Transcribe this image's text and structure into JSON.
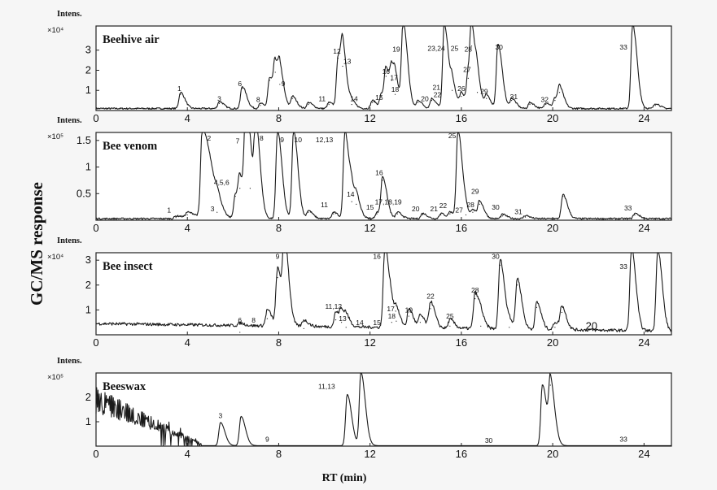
{
  "figure": {
    "y_axis_label": "GC/MS response",
    "x_axis_label": "RT (min)"
  },
  "chart_data": [
    {
      "type": "line",
      "title": "Beehive air",
      "intens_label": "Intens.",
      "scale_label": "×10⁴",
      "xlim": [
        0,
        25.2
      ],
      "ylim": [
        0,
        4.2
      ],
      "xticks": [
        0,
        4,
        8,
        12,
        16,
        20,
        24
      ],
      "yticks": [
        1,
        2,
        3
      ],
      "baseline": 0.1,
      "noise": 0.04,
      "peaks": [
        {
          "x": 3.7,
          "y": 0.8
        },
        {
          "x": 5.4,
          "y": 0.35
        },
        {
          "x": 6.4,
          "y": 1.1
        },
        {
          "x": 7.2,
          "y": 0.25
        },
        {
          "x": 7.6,
          "y": 1.5
        },
        {
          "x": 7.85,
          "y": 1.9
        },
        {
          "x": 8.05,
          "y": 1.3
        },
        {
          "x": 8.6,
          "y": 0.6
        },
        {
          "x": 9.3,
          "y": 0.3
        },
        {
          "x": 10.2,
          "y": 0.3
        },
        {
          "x": 10.6,
          "y": 2.6
        },
        {
          "x": 10.8,
          "y": 2.2
        },
        {
          "x": 11.2,
          "y": 0.3
        },
        {
          "x": 12.1,
          "y": 0.4
        },
        {
          "x": 12.5,
          "y": 0.7
        },
        {
          "x": 12.7,
          "y": 1.7
        },
        {
          "x": 12.95,
          "y": 1.5
        },
        {
          "x": 13.1,
          "y": 0.8
        },
        {
          "x": 13.45,
          "y": 4.2
        },
        {
          "x": 14.1,
          "y": 0.4
        },
        {
          "x": 14.7,
          "y": 0.5
        },
        {
          "x": 15.25,
          "y": 4.2
        },
        {
          "x": 15.6,
          "y": 1.0
        },
        {
          "x": 16.0,
          "y": 0.7
        },
        {
          "x": 16.3,
          "y": 1.6
        },
        {
          "x": 16.45,
          "y": 3.2
        },
        {
          "x": 16.7,
          "y": 0.9
        },
        {
          "x": 17.1,
          "y": 0.6
        },
        {
          "x": 17.6,
          "y": 3.2
        },
        {
          "x": 18.2,
          "y": 0.5
        },
        {
          "x": 19.0,
          "y": 0.3
        },
        {
          "x": 19.7,
          "y": 0.3
        },
        {
          "x": 20.1,
          "y": 0.5
        },
        {
          "x": 20.3,
          "y": 0.9
        },
        {
          "x": 23.5,
          "y": 4.2
        },
        {
          "x": 24.5,
          "y": 0.25
        }
      ],
      "labels": [
        {
          "text": "1",
          "x": 3.65,
          "y": 0.85
        },
        {
          "text": "3",
          "x": 5.4,
          "y": 0.35
        },
        {
          "text": "6",
          "x": 6.3,
          "y": 1.1
        },
        {
          "text": "8",
          "x": 7.1,
          "y": 0.3
        },
        {
          "text": "9",
          "x": 8.2,
          "y": 1.1
        },
        {
          "text": "11",
          "x": 9.9,
          "y": 0.35
        },
        {
          "text": "12",
          "x": 10.55,
          "y": 2.7
        },
        {
          "text": "13",
          "x": 11.0,
          "y": 2.2
        },
        {
          "text": "14",
          "x": 11.3,
          "y": 0.35
        },
        {
          "text": "15",
          "x": 12.4,
          "y": 0.4
        },
        {
          "text": "16",
          "x": 12.7,
          "y": 1.7
        },
        {
          "text": "17",
          "x": 13.05,
          "y": 1.4
        },
        {
          "text": "18",
          "x": 13.1,
          "y": 0.8
        },
        {
          "text": "19",
          "x": 13.15,
          "y": 2.8
        },
        {
          "text": "20",
          "x": 14.4,
          "y": 0.35
        },
        {
          "text": "21,",
          "x": 14.95,
          "y": 0.9
        },
        {
          "text": "22",
          "x": 14.95,
          "y": 0.55
        },
        {
          "text": "23,24",
          "x": 14.9,
          "y": 2.85
        },
        {
          "text": "25",
          "x": 15.7,
          "y": 2.85
        },
        {
          "text": "26",
          "x": 16.0,
          "y": 0.85
        },
        {
          "text": "27",
          "x": 16.25,
          "y": 1.8
        },
        {
          "text": "28",
          "x": 16.3,
          "y": 2.8
        },
        {
          "text": "29",
          "x": 17.0,
          "y": 0.7
        },
        {
          "text": "30",
          "x": 17.65,
          "y": 2.9
        },
        {
          "text": "31",
          "x": 18.3,
          "y": 0.45
        },
        {
          "text": "32",
          "x": 19.65,
          "y": 0.3
        },
        {
          "text": "33",
          "x": 23.1,
          "y": 2.9
        }
      ]
    },
    {
      "type": "line",
      "title": "Bee venom",
      "intens_label": "Intens.",
      "scale_label": "×10⁵",
      "xlim": [
        0,
        25.2
      ],
      "ylim": [
        0,
        1.65
      ],
      "xticks": [
        0,
        4,
        8,
        12,
        16,
        20,
        24
      ],
      "yticks": [
        0.5,
        1,
        1.5
      ],
      "baseline": 0.03,
      "noise": 0.015,
      "peaks": [
        {
          "x": 3.5,
          "y": 0.05
        },
        {
          "x": 4.0,
          "y": 0.1
        },
        {
          "x": 4.65,
          "y": 1.65
        },
        {
          "x": 5.3,
          "y": 0.15
        },
        {
          "x": 6.1,
          "y": 0.45
        },
        {
          "x": 6.3,
          "y": 0.6
        },
        {
          "x": 6.55,
          "y": 1.65
        },
        {
          "x": 6.75,
          "y": 0.6
        },
        {
          "x": 7.0,
          "y": 1.65
        },
        {
          "x": 7.95,
          "y": 1.65
        },
        {
          "x": 8.65,
          "y": 1.65
        },
        {
          "x": 9.3,
          "y": 0.15
        },
        {
          "x": 10.4,
          "y": 0.12
        },
        {
          "x": 10.9,
          "y": 1.65
        },
        {
          "x": 11.2,
          "y": 0.35
        },
        {
          "x": 11.4,
          "y": 0.3
        },
        {
          "x": 12.3,
          "y": 0.12
        },
        {
          "x": 12.55,
          "y": 0.75
        },
        {
          "x": 13.2,
          "y": 0.12
        },
        {
          "x": 14.3,
          "y": 0.1
        },
        {
          "x": 15.1,
          "y": 0.1
        },
        {
          "x": 15.5,
          "y": 0.12
        },
        {
          "x": 15.85,
          "y": 1.65
        },
        {
          "x": 16.2,
          "y": 0.1
        },
        {
          "x": 16.5,
          "y": 0.15
        },
        {
          "x": 16.8,
          "y": 0.3
        },
        {
          "x": 17.8,
          "y": 0.08
        },
        {
          "x": 18.8,
          "y": 0.06
        },
        {
          "x": 20.45,
          "y": 0.45
        },
        {
          "x": 23.6,
          "y": 0.1
        }
      ],
      "labels": [
        {
          "text": "1",
          "x": 3.2,
          "y": 0.1
        },
        {
          "text": "2",
          "x": 4.95,
          "y": 1.45
        },
        {
          "text": "3",
          "x": 5.1,
          "y": 0.12
        },
        {
          "text": "4,5,6",
          "x": 5.5,
          "y": 0.62
        },
        {
          "text": "7",
          "x": 6.2,
          "y": 1.4
        },
        {
          "text": "8",
          "x": 7.25,
          "y": 1.45
        },
        {
          "text": "9",
          "x": 8.15,
          "y": 1.42
        },
        {
          "text": "10",
          "x": 8.85,
          "y": 1.42
        },
        {
          "text": "11",
          "x": 10.0,
          "y": 0.2
        },
        {
          "text": "12,13",
          "x": 10.0,
          "y": 1.42
        },
        {
          "text": "14",
          "x": 11.15,
          "y": 0.4
        },
        {
          "text": "15",
          "x": 12.0,
          "y": 0.15
        },
        {
          "text": "16",
          "x": 12.4,
          "y": 0.8
        },
        {
          "text": "17,18,19",
          "x": 12.8,
          "y": 0.25
        },
        {
          "text": "20",
          "x": 14.0,
          "y": 0.12
        },
        {
          "text": "21",
          "x": 14.8,
          "y": 0.12
        },
        {
          "text": "22",
          "x": 15.2,
          "y": 0.18
        },
        {
          "text": "25",
          "x": 15.6,
          "y": 1.5
        },
        {
          "text": "27",
          "x": 15.9,
          "y": 0.1
        },
        {
          "text": "28",
          "x": 16.4,
          "y": 0.2
        },
        {
          "text": "29",
          "x": 16.6,
          "y": 0.45
        },
        {
          "text": "30",
          "x": 17.5,
          "y": 0.15
        },
        {
          "text": "31",
          "x": 18.5,
          "y": 0.07
        },
        {
          "text": "33",
          "x": 23.3,
          "y": 0.14
        }
      ]
    },
    {
      "type": "line",
      "title": "Bee insect",
      "intens_label": "Intens.",
      "scale_label": "×10⁴",
      "xlim": [
        0,
        25.2
      ],
      "ylim": [
        0,
        3.3
      ],
      "xticks": [
        0,
        4,
        8,
        12,
        16,
        20,
        24
      ],
      "yticks": [
        1,
        2,
        3
      ],
      "baseline": 0.45,
      "baseline_end": 0.15,
      "noise": 0.06,
      "peaks": [
        {
          "x": 6.3,
          "y": 0.1
        },
        {
          "x": 7.5,
          "y": 0.65
        },
        {
          "x": 7.95,
          "y": 2.3
        },
        {
          "x": 8.25,
          "y": 3.3
        },
        {
          "x": 9.1,
          "y": 0.25
        },
        {
          "x": 10.5,
          "y": 0.6
        },
        {
          "x": 10.75,
          "y": 0.5
        },
        {
          "x": 10.95,
          "y": 0.3
        },
        {
          "x": 12.65,
          "y": 3.3
        },
        {
          "x": 12.95,
          "y": 0.5
        },
        {
          "x": 13.15,
          "y": 0.55
        },
        {
          "x": 13.7,
          "y": 0.75
        },
        {
          "x": 14.2,
          "y": 0.5
        },
        {
          "x": 14.65,
          "y": 1.05
        },
        {
          "x": 15.5,
          "y": 0.35
        },
        {
          "x": 16.6,
          "y": 1.45
        },
        {
          "x": 16.85,
          "y": 0.35
        },
        {
          "x": 17.7,
          "y": 2.8
        },
        {
          "x": 18.1,
          "y": 0.3
        },
        {
          "x": 18.45,
          "y": 2.0
        },
        {
          "x": 19.3,
          "y": 1.1
        },
        {
          "x": 20.1,
          "y": 0.3
        },
        {
          "x": 20.4,
          "y": 0.9
        },
        {
          "x": 23.45,
          "y": 3.3
        },
        {
          "x": 24.6,
          "y": 3.3
        }
      ],
      "labels": [
        {
          "text": "6",
          "x": 6.3,
          "y": 0.4
        },
        {
          "text": "8",
          "x": 6.9,
          "y": 0.4
        },
        {
          "text": "9",
          "x": 7.95,
          "y": 2.95
        },
        {
          "text": "11,12",
          "x": 10.4,
          "y": 0.95
        },
        {
          "text": "13",
          "x": 10.8,
          "y": 0.45
        },
        {
          "text": "14",
          "x": 11.55,
          "y": 0.3
        },
        {
          "text": "15",
          "x": 12.3,
          "y": 0.3
        },
        {
          "text": "16",
          "x": 12.3,
          "y": 2.95
        },
        {
          "text": "17,",
          "x": 12.95,
          "y": 0.85
        },
        {
          "text": "18",
          "x": 12.95,
          "y": 0.55
        },
        {
          "text": "19",
          "x": 13.7,
          "y": 0.8
        },
        {
          "text": "22",
          "x": 14.65,
          "y": 1.35
        },
        {
          "text": "25",
          "x": 15.5,
          "y": 0.55
        },
        {
          "text": "28",
          "x": 16.6,
          "y": 1.6
        },
        {
          "text": "30",
          "x": 17.5,
          "y": 2.95
        },
        {
          "text": "33",
          "x": 23.1,
          "y": 2.55
        }
      ],
      "annotation": {
        "text": "20",
        "x": 21.7,
        "y": 0.22
      }
    },
    {
      "type": "line",
      "title": "Beeswax",
      "intens_label": "Intens.",
      "scale_label": "×10⁵",
      "xlim": [
        0,
        25.2
      ],
      "ylim": [
        0,
        3.0
      ],
      "xticks": [
        0,
        4,
        8,
        12,
        16,
        20,
        24
      ],
      "yticks": [
        1,
        2
      ],
      "baseline": 0.02,
      "noise": 0.0,
      "early_region": {
        "x_start": 0,
        "x_end": 4.6,
        "y_start": 2.3
      },
      "peaks": [
        {
          "x": 5.45,
          "y": 0.95
        },
        {
          "x": 6.35,
          "y": 1.2
        },
        {
          "x": 11.0,
          "y": 2.1
        },
        {
          "x": 11.6,
          "y": 3.0
        },
        {
          "x": 19.55,
          "y": 2.5
        },
        {
          "x": 19.9,
          "y": 2.5
        }
      ],
      "labels": [
        {
          "text": "3",
          "x": 5.45,
          "y": 1.05
        },
        {
          "text": "9",
          "x": 7.5,
          "y": 0.08
        },
        {
          "text": "11,13",
          "x": 10.1,
          "y": 2.25
        },
        {
          "text": "30",
          "x": 17.2,
          "y": 0.04
        },
        {
          "text": "33",
          "x": 23.1,
          "y": 0.08
        }
      ]
    }
  ]
}
